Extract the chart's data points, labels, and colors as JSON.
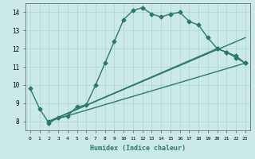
{
  "xlabel": "Humidex (Indice chaleur)",
  "xlim": [
    -0.5,
    23.5
  ],
  "ylim": [
    7.5,
    14.5
  ],
  "xticks": [
    0,
    1,
    2,
    3,
    4,
    5,
    6,
    7,
    8,
    9,
    10,
    11,
    12,
    13,
    14,
    15,
    16,
    17,
    18,
    19,
    20,
    21,
    22,
    23
  ],
  "yticks": [
    8,
    9,
    10,
    11,
    12,
    13,
    14
  ],
  "background_color": "#cce9e9",
  "grid_color": "#aad4d4",
  "line_color": "#2a7a6a",
  "lines": [
    {
      "x": [
        0,
        1,
        2,
        3,
        4,
        5,
        6,
        7,
        8,
        9,
        10,
        11,
        12,
        13,
        14,
        15,
        16,
        17,
        18,
        19,
        20,
        21,
        22,
        23
      ],
      "y": [
        9.8,
        8.7,
        7.9,
        8.2,
        8.3,
        8.8,
        8.9,
        10.0,
        11.2,
        12.4,
        13.6,
        14.1,
        14.25,
        13.9,
        13.75,
        13.9,
        14.0,
        13.5,
        13.3,
        12.6,
        12.0,
        11.8,
        11.5,
        11.2
      ],
      "marker": "D",
      "markersize": 2.5,
      "linewidth": 1.0
    },
    {
      "x": [
        2,
        23
      ],
      "y": [
        8.0,
        12.6
      ],
      "marker": null,
      "markersize": 0,
      "linewidth": 1.0
    },
    {
      "x": [
        2,
        20,
        21,
        22,
        23
      ],
      "y": [
        8.0,
        12.0,
        11.8,
        11.6,
        11.2
      ],
      "marker": "D",
      "markersize": 2.5,
      "linewidth": 1.0
    },
    {
      "x": [
        2,
        23
      ],
      "y": [
        8.0,
        11.2
      ],
      "marker": null,
      "markersize": 0,
      "linewidth": 1.0
    }
  ]
}
